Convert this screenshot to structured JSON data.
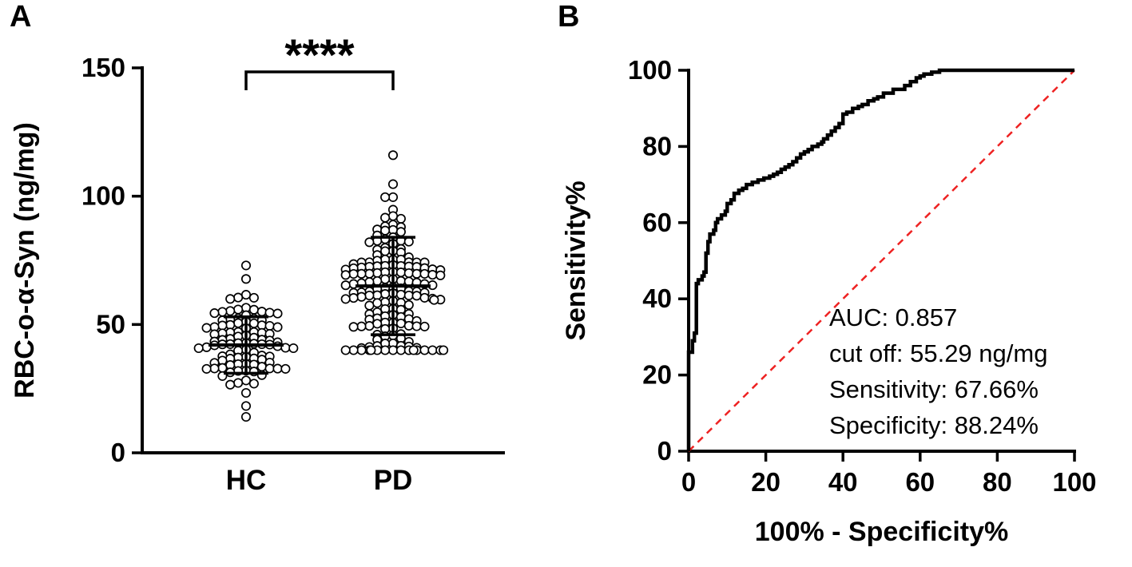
{
  "panels": {
    "a": {
      "letter": "A"
    },
    "b": {
      "letter": "B"
    }
  },
  "colors": {
    "axis": "#000000",
    "point_fill": "#ffffff",
    "point_stroke": "#000000",
    "roc_curve": "#000000",
    "diagonal": "#ee2222"
  },
  "chart_data": [
    {
      "type": "scatter",
      "panel": "A",
      "title": "",
      "xlabel": "",
      "ylabel": "RBC-o-α-Syn (ng/mg)",
      "categories": [
        "HC",
        "PD"
      ],
      "ylim": [
        0,
        150
      ],
      "yticks": [
        0,
        50,
        100,
        150
      ],
      "grid": false,
      "legend": "none",
      "significance_label": "****",
      "groups": [
        {
          "name": "HC",
          "mean": 42,
          "sd_upper": 53,
          "sd_lower": 31,
          "sd": 10.5,
          "min": 14,
          "max": 73,
          "n": 100
        },
        {
          "name": "PD",
          "mean": 65,
          "sd_upper": 84,
          "sd_lower": 46,
          "sd": 17,
          "min": 40,
          "max": 116,
          "n": 165
        }
      ]
    },
    {
      "type": "line",
      "panel": "B",
      "title": "",
      "xlabel": "100% - Specificity%",
      "ylabel": "Sensitivity%",
      "xlim": [
        0,
        100
      ],
      "ylim": [
        0,
        100
      ],
      "xticks": [
        0,
        20,
        40,
        60,
        80,
        100
      ],
      "yticks": [
        0,
        20,
        40,
        60,
        80,
        100
      ],
      "grid": false,
      "legend": "none",
      "annotations": [
        "AUC: 0.857",
        "cut off: 55.29 ng/mg",
        "Sensitivity: 67.66%",
        "Specificity: 88.24%"
      ],
      "diagonal": [
        [
          0,
          0
        ],
        [
          100,
          100
        ]
      ],
      "series": [
        {
          "name": "ROC",
          "points": [
            [
              0,
              0
            ],
            [
              0,
              26
            ],
            [
              1,
              26
            ],
            [
              1,
              29
            ],
            [
              1.5,
              29
            ],
            [
              1.5,
              31
            ],
            [
              2,
              31
            ],
            [
              2,
              44
            ],
            [
              2.5,
              44
            ],
            [
              2.5,
              45
            ],
            [
              3.5,
              45
            ],
            [
              3.5,
              46
            ],
            [
              4,
              46
            ],
            [
              4,
              47
            ],
            [
              4.5,
              47
            ],
            [
              4.5,
              52
            ],
            [
              5,
              52
            ],
            [
              5,
              55
            ],
            [
              5.5,
              55
            ],
            [
              5.5,
              57
            ],
            [
              6.5,
              57
            ],
            [
              6.5,
              58
            ],
            [
              7,
              58
            ],
            [
              7,
              60
            ],
            [
              7.5,
              60
            ],
            [
              7.5,
              61
            ],
            [
              8.5,
              61
            ],
            [
              8.5,
              62
            ],
            [
              9.5,
              62
            ],
            [
              9.5,
              63
            ],
            [
              10,
              63
            ],
            [
              10,
              65
            ],
            [
              11,
              65
            ],
            [
              11,
              66
            ],
            [
              11.8,
              66
            ],
            [
              11.8,
              67.7
            ],
            [
              13,
              67.7
            ],
            [
              13,
              68.5
            ],
            [
              14,
              68.5
            ],
            [
              14,
              69
            ],
            [
              15,
              69
            ],
            [
              15,
              70
            ],
            [
              16.5,
              70
            ],
            [
              16.5,
              70.6
            ],
            [
              18,
              70.6
            ],
            [
              18,
              71.2
            ],
            [
              19.5,
              71.2
            ],
            [
              19.5,
              71.7
            ],
            [
              21,
              71.7
            ],
            [
              21,
              72.2
            ],
            [
              22,
              72.2
            ],
            [
              22,
              72.7
            ],
            [
              23,
              72.7
            ],
            [
              23,
              73.2
            ],
            [
              24,
              73.2
            ],
            [
              24,
              74
            ],
            [
              25,
              74
            ],
            [
              25,
              74.6
            ],
            [
              26,
              74.6
            ],
            [
              26,
              75.2
            ],
            [
              27,
              75.2
            ],
            [
              27,
              76
            ],
            [
              28,
              76
            ],
            [
              28,
              77
            ],
            [
              29,
              77
            ],
            [
              29,
              78
            ],
            [
              30,
              78
            ],
            [
              30,
              78.6
            ],
            [
              31,
              78.6
            ],
            [
              31,
              79.2
            ],
            [
              32,
              79.2
            ],
            [
              32,
              80
            ],
            [
              33.5,
              80
            ],
            [
              33.5,
              80.6
            ],
            [
              34.5,
              80.6
            ],
            [
              34.5,
              81.2
            ],
            [
              35,
              81.2
            ],
            [
              35,
              82
            ],
            [
              36,
              82
            ],
            [
              36,
              83
            ],
            [
              37,
              83
            ],
            [
              37,
              84
            ],
            [
              38,
              84
            ],
            [
              38,
              85
            ],
            [
              39,
              85
            ],
            [
              39,
              86
            ],
            [
              40,
              86
            ],
            [
              40,
              88.5
            ],
            [
              41,
              88.5
            ],
            [
              41,
              89
            ],
            [
              42.5,
              89
            ],
            [
              42.5,
              90
            ],
            [
              44,
              90
            ],
            [
              44,
              90.5
            ],
            [
              45,
              90.5
            ],
            [
              45,
              91
            ],
            [
              46.5,
              91
            ],
            [
              46.5,
              92
            ],
            [
              48,
              92
            ],
            [
              48,
              92.5
            ],
            [
              49,
              92.5
            ],
            [
              49,
              93
            ],
            [
              50.5,
              93
            ],
            [
              50.5,
              94
            ],
            [
              53,
              94
            ],
            [
              53,
              95
            ],
            [
              56,
              95
            ],
            [
              56,
              96
            ],
            [
              57.5,
              96
            ],
            [
              57.5,
              97
            ],
            [
              59,
              97
            ],
            [
              59,
              98
            ],
            [
              60,
              98
            ],
            [
              60,
              98.5
            ],
            [
              61,
              98.5
            ],
            [
              61,
              99
            ],
            [
              63,
              99
            ],
            [
              63,
              99.5
            ],
            [
              65,
              99.5
            ],
            [
              65,
              100
            ],
            [
              72,
              100
            ],
            [
              100,
              100
            ]
          ]
        }
      ]
    }
  ]
}
